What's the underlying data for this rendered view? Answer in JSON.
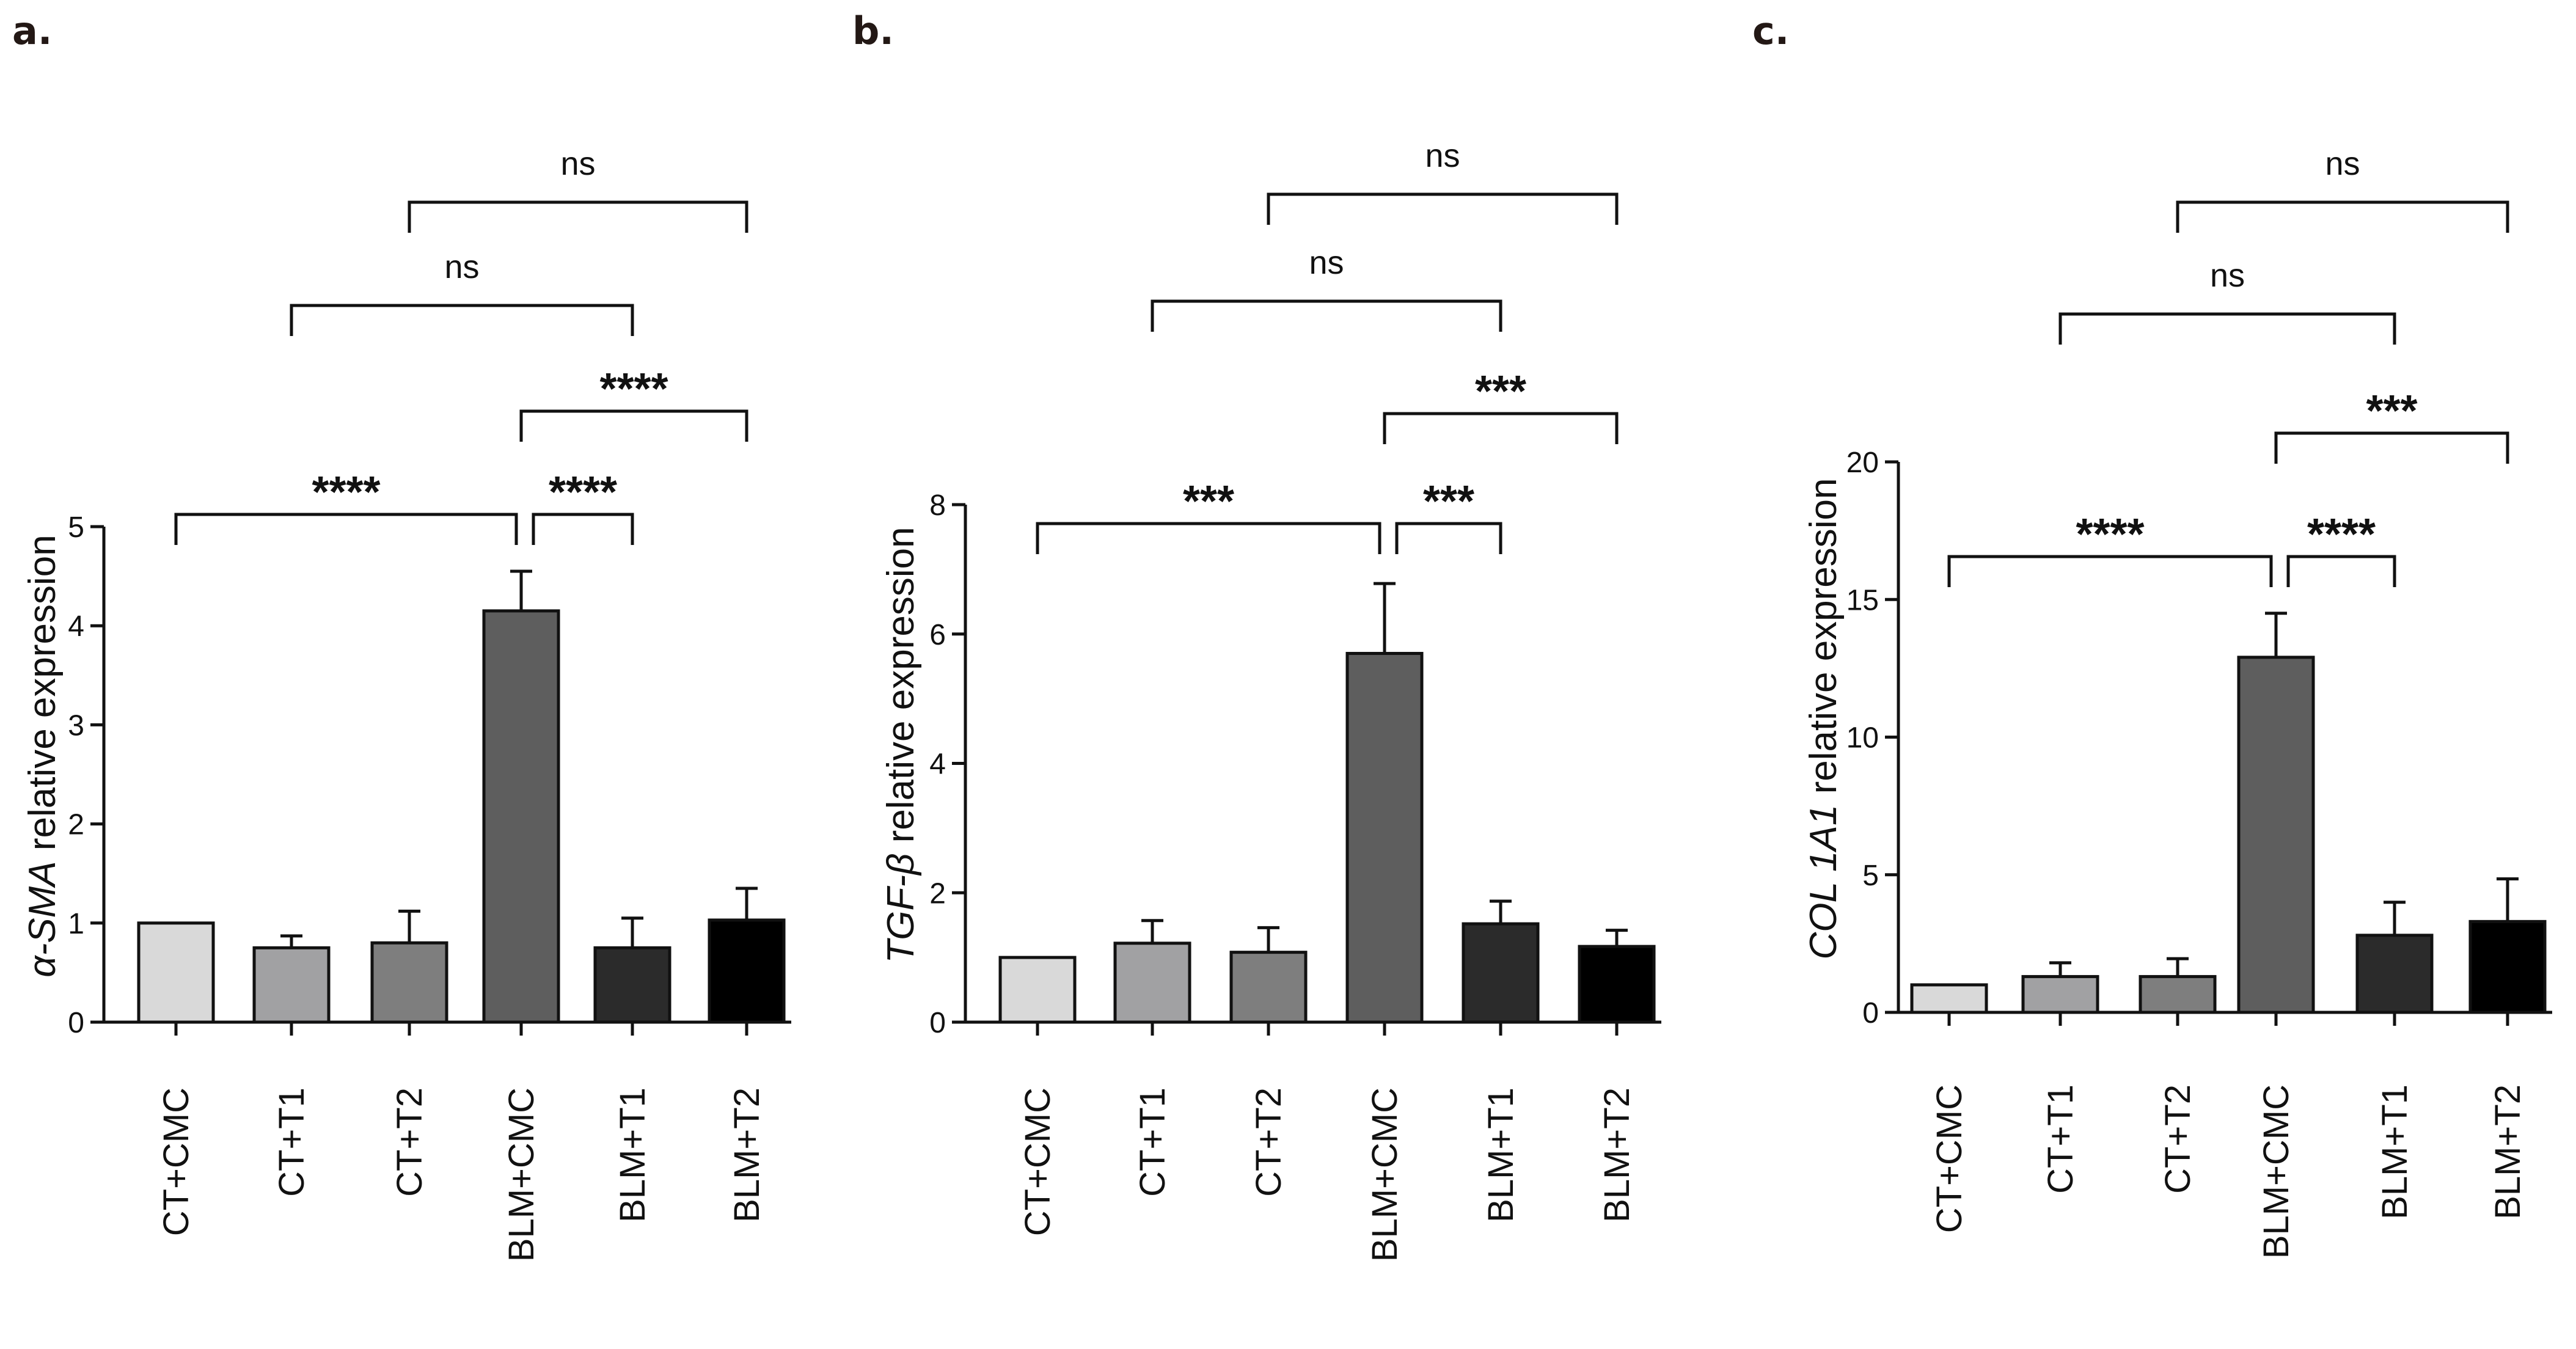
{
  "colors": {
    "bar_fills": [
      "#d9d9d9",
      "#a1a1a3",
      "#7e7e7e",
      "#5e5e5e",
      "#2b2b2b",
      "#000000"
    ],
    "axis": "#111111",
    "panel_label": "#231815"
  },
  "chart_data": [
    {
      "type": "bar",
      "panel": "a.",
      "title": "",
      "ylabel_gene": "α-SMA",
      "ylabel_rest": " relative expression",
      "xlabel": "",
      "categories": [
        "CT+CMC",
        "CT+T1",
        "CT+T2",
        "BLM+CMC",
        "BLM+T1",
        "BLM+T2"
      ],
      "values": [
        1.0,
        0.75,
        0.8,
        4.15,
        0.75,
        1.03
      ],
      "errors": [
        0.0,
        0.12,
        0.32,
        0.4,
        0.3,
        0.32
      ],
      "ylim": [
        0,
        5
      ],
      "yticks": [
        0,
        1,
        2,
        3,
        4,
        5
      ],
      "comparisons": [
        {
          "from": 0,
          "to": 3,
          "label": "****",
          "level": 0
        },
        {
          "from": 3,
          "to": 4,
          "label": "****",
          "level": 0
        },
        {
          "from": 3,
          "to": 5,
          "label": "****",
          "level": 1
        },
        {
          "from": 1,
          "to": 4,
          "label": "ns",
          "level": 2
        },
        {
          "from": 2,
          "to": 5,
          "label": "ns",
          "level": 3
        }
      ]
    },
    {
      "type": "bar",
      "panel": "b.",
      "title": "",
      "ylabel_gene": "TGF-β",
      "ylabel_rest": " relative expression",
      "xlabel": "",
      "categories": [
        "CT+CMC",
        "CT+T1",
        "CT+T2",
        "BLM+CMC",
        "BLM+T1",
        "BLM+T2"
      ],
      "values": [
        1.0,
        1.22,
        1.08,
        5.7,
        1.52,
        1.17
      ],
      "errors": [
        0.0,
        0.35,
        0.38,
        1.08,
        0.35,
        0.25
      ],
      "ylim": [
        0,
        8
      ],
      "yticks": [
        0,
        2,
        4,
        6,
        8
      ],
      "comparisons": [
        {
          "from": 0,
          "to": 3,
          "label": "***",
          "level": 0
        },
        {
          "from": 3,
          "to": 4,
          "label": "***",
          "level": 0
        },
        {
          "from": 3,
          "to": 5,
          "label": "***",
          "level": 1
        },
        {
          "from": 1,
          "to": 4,
          "label": "ns",
          "level": 2
        },
        {
          "from": 2,
          "to": 5,
          "label": "ns",
          "level": 3
        }
      ]
    },
    {
      "type": "bar",
      "panel": "c.",
      "title": "",
      "ylabel_gene": "COL 1A1",
      "ylabel_rest": " relative expression",
      "xlabel": "",
      "categories": [
        "CT+CMC",
        "CT+T1",
        "CT+T2",
        "BLM+CMC",
        "BLM+T1",
        "BLM+T2"
      ],
      "values": [
        1.0,
        1.3,
        1.3,
        12.9,
        2.8,
        3.3
      ],
      "errors": [
        0.0,
        0.5,
        0.65,
        1.6,
        1.2,
        1.55
      ],
      "ylim": [
        0,
        20
      ],
      "yticks": [
        0,
        5,
        10,
        15,
        20
      ],
      "comparisons": [
        {
          "from": 0,
          "to": 3,
          "label": "****",
          "level": 0
        },
        {
          "from": 3,
          "to": 4,
          "label": "****",
          "level": 0
        },
        {
          "from": 3,
          "to": 5,
          "label": "***",
          "level": 1
        },
        {
          "from": 1,
          "to": 4,
          "label": "ns",
          "level": 2
        },
        {
          "from": 2,
          "to": 5,
          "label": "ns",
          "level": 3
        }
      ]
    }
  ]
}
